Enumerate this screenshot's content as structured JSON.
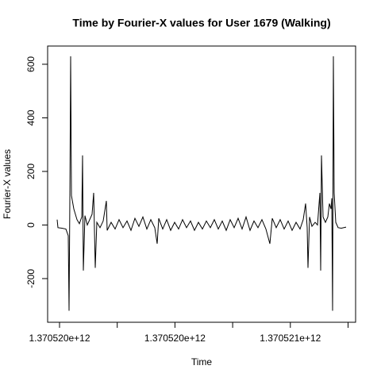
{
  "chart_data": {
    "type": "line",
    "title": "Time by Fourier-X values for User 1679 (Walking)",
    "x_label": "Time",
    "y_label": "Fourier-X values",
    "color": "#000000",
    "xlim": [
      1370519958735,
      1370521026135
    ],
    "ylim": [
      -363,
      668
    ],
    "xticks": [
      {
        "value": 1370520000000,
        "label": "1.370520e+12"
      },
      {
        "value": 1370520200000,
        "label": null
      },
      {
        "value": 1370520400000,
        "label": "1.370520e+12"
      },
      {
        "value": 1370520600000,
        "label": null
      },
      {
        "value": 1370520800000,
        "label": "1.370521e+12"
      },
      {
        "value": 1370521000000,
        "label": null
      }
    ],
    "yticks": [
      -200,
      0,
      200,
      400,
      600
    ],
    "x": [
      1370519991747,
      1370519994498,
      1370520008253,
      1370520022008,
      1370520030261,
      1370520033012,
      1370520035763,
      1370520038514,
      1370520041265,
      1370520049518,
      1370520060522,
      1370520068775,
      1370520077028,
      1370520079779,
      1370520082530,
      1370520088032,
      1370520096285,
      1370520104538,
      1370520112791,
      1370520118293,
      1370520123795,
      1370520129297,
      1370520140301,
      1370520151305,
      1370520162309,
      1370520165060,
      1370520178815,
      1370520192570,
      1370520206325,
      1370520220080,
      1370520233835,
      1370520247590,
      1370520261345,
      1370520275100,
      1370520288855,
      1370520302610,
      1370520316365,
      1370520330120,
      1370520338373,
      1370520343875,
      1370520357630,
      1370520371385,
      1370520385140,
      1370520398895,
      1370520412650,
      1370520426405,
      1370520440160,
      1370520453915,
      1370520467670,
      1370520481425,
      1370520495180,
      1370520508935,
      1370520522690,
      1370520536445,
      1370520550200,
      1370520563955,
      1370520577710,
      1370520591465,
      1370520605220,
      1370520618975,
      1370520632730,
      1370520646485,
      1370520660240,
      1370520673995,
      1370520687750,
      1370520701505,
      1370520715260,
      1370520729015,
      1370520737268,
      1370520751023,
      1370520764778,
      1370520778533,
      1370520792288,
      1370520806043,
      1370520819798,
      1370520833553,
      1370520844557,
      1370520852810,
      1370520858312,
      1370520861063,
      1370520866565,
      1370520874818,
      1370520885822,
      1370520894075,
      1370520902328,
      1370520905079,
      1370520907830,
      1370520913332,
      1370520921585,
      1370520929838,
      1370520935340,
      1370520940842,
      1370520943593,
      1370520946344,
      1370520949095,
      1370520951846,
      1370520957348,
      1370520965601,
      1370520976605,
      1370520993111
    ],
    "values": [
      20,
      -10,
      -12,
      -15,
      -40,
      -320,
      100,
      630,
      110,
      60,
      20,
      5,
      30,
      260,
      -170,
      35,
      0,
      20,
      40,
      120,
      -160,
      10,
      -10,
      15,
      90,
      -20,
      10,
      -15,
      20,
      -10,
      15,
      -20,
      25,
      -5,
      30,
      -15,
      20,
      -10,
      -70,
      25,
      -15,
      20,
      -20,
      10,
      -15,
      20,
      -10,
      15,
      -20,
      10,
      -15,
      15,
      -10,
      20,
      -15,
      15,
      -20,
      20,
      -10,
      25,
      -15,
      30,
      -20,
      15,
      -10,
      20,
      -15,
      -70,
      25,
      -10,
      20,
      -15,
      15,
      -20,
      10,
      -15,
      20,
      80,
      -10,
      -160,
      30,
      -5,
      10,
      0,
      120,
      -170,
      260,
      30,
      10,
      30,
      80,
      60,
      100,
      -320,
      630,
      120,
      10,
      -10,
      -12,
      -8
    ]
  }
}
